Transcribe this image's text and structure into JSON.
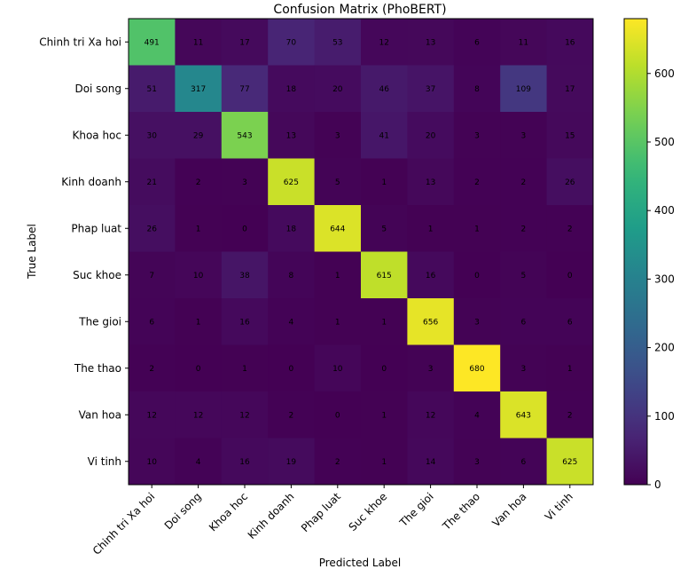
{
  "chart_data": {
    "type": "heatmap",
    "title": "Confusion Matrix (PhoBERT)",
    "xlabel": "Predicted Label",
    "ylabel": "True Label",
    "categories": [
      "Chinh tri Xa hoi",
      "Doi song",
      "Khoa hoc",
      "Kinh doanh",
      "Phap luat",
      "Suc khoe",
      "The gioi",
      "The thao",
      "Van hoa",
      "Vi tinh"
    ],
    "values": [
      [
        491,
        11,
        17,
        70,
        53,
        12,
        13,
        6,
        11,
        16
      ],
      [
        51,
        317,
        77,
        18,
        20,
        46,
        37,
        8,
        109,
        17
      ],
      [
        30,
        29,
        543,
        13,
        3,
        41,
        20,
        3,
        3,
        15
      ],
      [
        21,
        2,
        3,
        625,
        5,
        1,
        13,
        2,
        2,
        26
      ],
      [
        26,
        1,
        0,
        18,
        644,
        5,
        1,
        1,
        2,
        2
      ],
      [
        7,
        10,
        38,
        8,
        1,
        615,
        16,
        0,
        5,
        0
      ],
      [
        6,
        1,
        16,
        4,
        1,
        1,
        656,
        3,
        6,
        6
      ],
      [
        2,
        0,
        1,
        0,
        10,
        0,
        3,
        680,
        3,
        1
      ],
      [
        12,
        12,
        12,
        2,
        0,
        1,
        12,
        4,
        643,
        2
      ],
      [
        10,
        4,
        16,
        19,
        2,
        1,
        14,
        3,
        6,
        625
      ]
    ],
    "colormap": "viridis",
    "colorbar": {
      "range": [
        0,
        680
      ],
      "ticks": [
        0,
        100,
        200,
        300,
        400,
        500,
        600
      ]
    },
    "grid": false
  }
}
